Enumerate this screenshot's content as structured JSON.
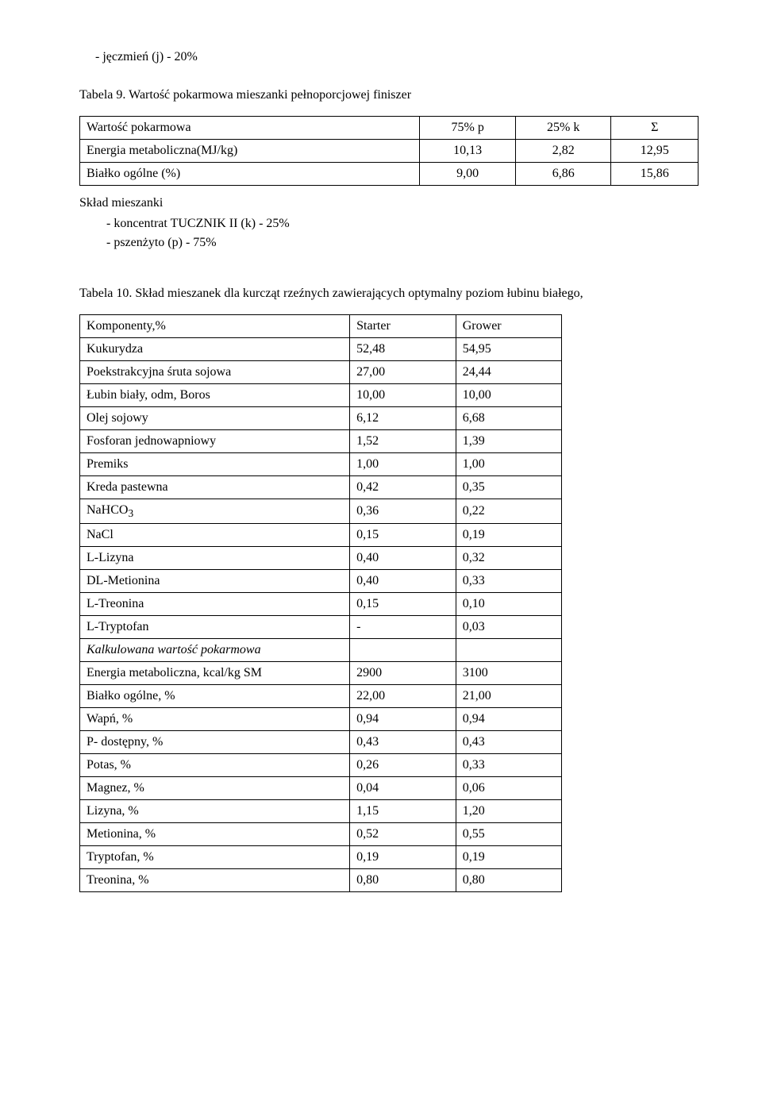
{
  "top_list_item": "- jęczmień (j)     - 20%",
  "table9": {
    "caption": "Tabela 9. Wartość pokarmowa mieszanki pełnoporcjowej finiszer",
    "headers": [
      "Wartość pokarmowa",
      "75% p",
      "25% k",
      "Σ"
    ],
    "rows": [
      {
        "label": "Energia metaboliczna(MJ/kg)",
        "c1": "10,13",
        "c2": "2,82",
        "c3": "12,95"
      },
      {
        "label": "Białko ogólne (%)",
        "c1": "9,00",
        "c2": "6,86",
        "c3": "15,86"
      }
    ],
    "mix_header": "Skład mieszanki",
    "mix_items": [
      "- koncentrat TUCZNIK II (k)  - 25%",
      "- pszenżyto (p)   - 75%"
    ]
  },
  "table10": {
    "caption": "Tabela 10. Skład mieszanek dla kurcząt rzeźnych zawierających optymalny poziom łubinu białego,",
    "headers": [
      "Komponenty,%",
      "Starter",
      "Grower"
    ],
    "rows": [
      {
        "label": "Kukurydza",
        "c1": "52,48",
        "c2": "54,95"
      },
      {
        "label": "Poekstrakcyjna śruta sojowa",
        "c1": "27,00",
        "c2": "24,44"
      },
      {
        "label": "Łubin biały, odm, Boros",
        "c1": "10,00",
        "c2": "10,00"
      },
      {
        "label": "Olej sojowy",
        "c1": "6,12",
        "c2": "6,68"
      },
      {
        "label": "Fosforan jednowapniowy",
        "c1": "1,52",
        "c2": "1,39"
      },
      {
        "label": "Premiks",
        "c1": "1,00",
        "c2": "1,00"
      },
      {
        "label": "Kreda pastewna",
        "c1": "0,42",
        "c2": "0,35"
      },
      {
        "label_html": "NaHCO<sub>3</sub>",
        "c1": "0,36",
        "c2": "0,22"
      },
      {
        "label": "NaCl",
        "c1": "0,15",
        "c2": "0,19"
      },
      {
        "label": "L-Lizyna",
        "c1": "0,40",
        "c2": "0,32"
      },
      {
        "label": "DL-Metionina",
        "c1": "0,40",
        "c2": "0,33"
      },
      {
        "label": "L-Treonina",
        "c1": "0,15",
        "c2": "0,10"
      },
      {
        "label": "L-Tryptofan",
        "c1": "-",
        "c2": "0,03"
      },
      {
        "label": "Kalkulowana wartość pokarmowa",
        "italic": true,
        "c1": "",
        "c2": ""
      },
      {
        "label": "Energia metaboliczna, kcal/kg SM",
        "c1": "2900",
        "c2": "3100"
      },
      {
        "label": "Białko ogólne, %",
        "c1": "22,00",
        "c2": "21,00"
      },
      {
        "label": "Wapń, %",
        "c1": "0,94",
        "c2": "0,94"
      },
      {
        "label": "P- dostępny, %",
        "c1": "0,43",
        "c2": "0,43"
      },
      {
        "label": "Potas, %",
        "c1": "0,26",
        "c2": "0,33"
      },
      {
        "label": "Magnez, %",
        "c1": "0,04",
        "c2": "0,06"
      },
      {
        "label": "Lizyna, %",
        "c1": "1,15",
        "c2": "1,20"
      },
      {
        "label": "Metionina, %",
        "c1": "0,52",
        "c2": "0,55"
      },
      {
        "label": "Tryptofan, %",
        "c1": "0,19",
        "c2": "0,19"
      },
      {
        "label": "Treonina, %",
        "c1": "0,80",
        "c2": "0,80"
      }
    ]
  }
}
